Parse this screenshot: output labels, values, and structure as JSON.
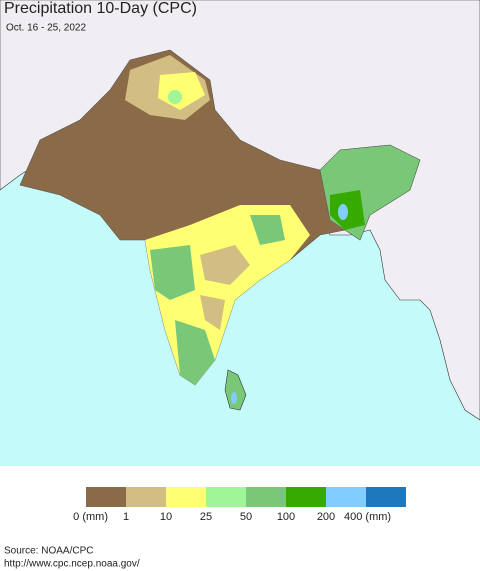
{
  "header": {
    "title": "Precipitation 10-Day (CPC)",
    "subtitle": "Oct. 16 - 25, 2022"
  },
  "legend": {
    "colors": [
      "#8b6b47",
      "#d2be82",
      "#ffff73",
      "#a0f596",
      "#78c878",
      "#37aa00",
      "#82cdff",
      "#1e78be"
    ],
    "labels": [
      "0 (mm)",
      "1",
      "10",
      "25",
      "50",
      "100",
      "200",
      "400 (mm)"
    ]
  },
  "footer": {
    "source": "Source: NOAA/CPC",
    "url": "http://www.cpc.ncep.noaa.gov/"
  }
}
